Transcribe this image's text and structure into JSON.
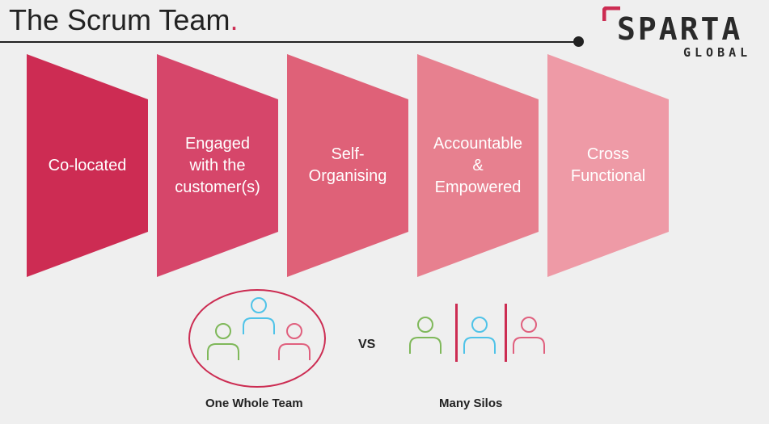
{
  "header": {
    "title": "The Scrum Team",
    "title_dot": ".",
    "accent_color": "#cc2c52"
  },
  "logo": {
    "word": "SPARTA",
    "sub": "GLOBAL"
  },
  "chevrons": [
    {
      "label": "Co-located",
      "color": "#cd2c53"
    },
    {
      "label": "Engaged\nwith the\ncustomer(s)",
      "color": "#d6466a"
    },
    {
      "label": "Self-\nOrganising",
      "color": "#df6178"
    },
    {
      "label": "Accountable\n&\nEmpowered",
      "color": "#e7808f"
    },
    {
      "label": "Cross\nFunctional",
      "color": "#ee9aa6"
    }
  ],
  "comparison": {
    "vs_label": "VS",
    "left_caption": "One Whole Team",
    "right_caption": "Many Silos",
    "person_colors": {
      "green": "#7fb85a",
      "blue": "#4fc3e8",
      "pink": "#e0607e"
    }
  }
}
